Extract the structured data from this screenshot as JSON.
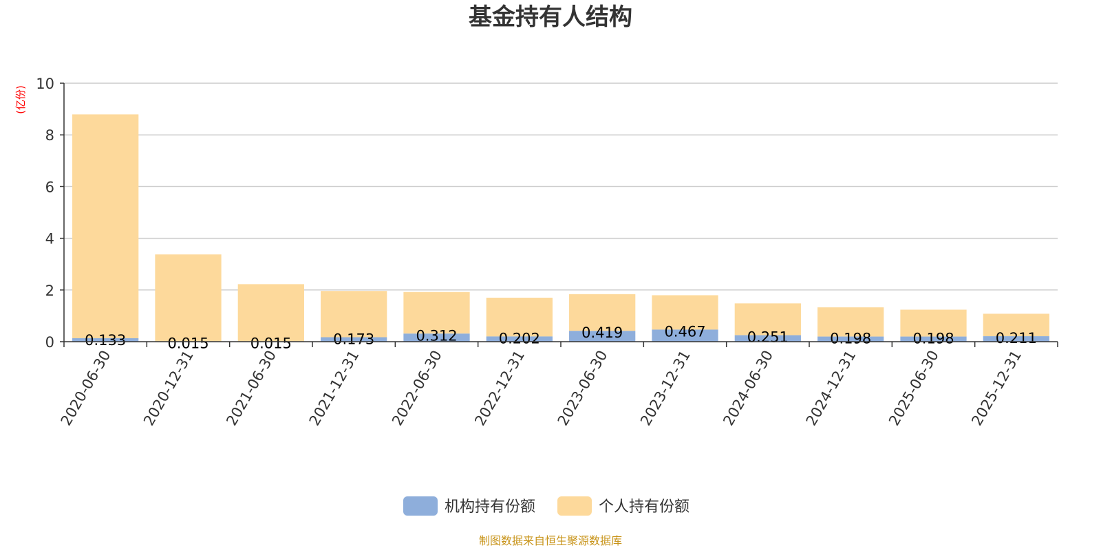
{
  "chart_data": {
    "type": "bar",
    "stacked": true,
    "title": "基金持有人结构",
    "unit_label": "(亿份)",
    "categories": [
      "2020-06-30",
      "2020-12-31",
      "2021-06-30",
      "2021-12-31",
      "2022-06-30",
      "2022-12-31",
      "2023-06-30",
      "2023-12-31",
      "2024-06-30",
      "2024-12-31",
      "2025-06-30",
      "2025-12-31"
    ],
    "series": [
      {
        "name": "机构持有份额",
        "color": "#8eaedb",
        "values": [
          0.133,
          0.015,
          0.015,
          0.173,
          0.312,
          0.202,
          0.419,
          0.467,
          0.251,
          0.198,
          0.198,
          0.211
        ],
        "labels": [
          "0.133",
          "0.015",
          "0.015",
          "0.173",
          "0.312",
          "0.202",
          "0.419",
          "0.467",
          "0.251",
          "0.198",
          "0.198",
          "0.211"
        ]
      },
      {
        "name": "个人持有份额",
        "color": "#fdd99b",
        "values": [
          8.66,
          3.36,
          2.21,
          1.79,
          1.61,
          1.5,
          1.42,
          1.33,
          1.23,
          1.13,
          1.04,
          0.87
        ]
      }
    ],
    "yticks": [
      "0",
      "2",
      "4",
      "6",
      "8",
      "10"
    ],
    "ylim": [
      0,
      10
    ],
    "grid": true,
    "legend_position": "bottom"
  },
  "source_text": "制图数据来自恒生聚源数据库"
}
